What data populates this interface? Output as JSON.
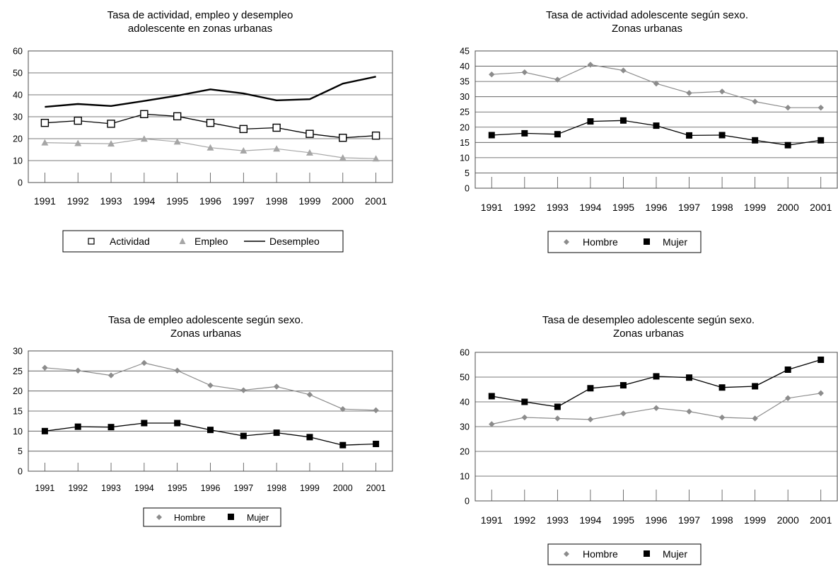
{
  "chart_data": [
    {
      "type": "line",
      "title": "Tasa de actividad, empleo y desempleo",
      "subtitle": "adolescente en zonas urbanas",
      "xlabel": "",
      "ylabel": "",
      "x": [
        "1991",
        "1992",
        "1993",
        "1994",
        "1995",
        "1996",
        "1997",
        "1998",
        "1999",
        "2000",
        "2001"
      ],
      "ylim": [
        0,
        60
      ],
      "yticks": [
        0,
        10,
        20,
        30,
        40,
        50,
        60
      ],
      "grid": true,
      "legend": "bottom",
      "series": [
        {
          "name": "Actividad",
          "color": "#000000",
          "marker": "square-open",
          "values": [
            27.2,
            28.2,
            26.8,
            31.2,
            30.2,
            27.2,
            24.4,
            25.0,
            22.2,
            20.4,
            21.4
          ]
        },
        {
          "name": "Empleo",
          "color": "#a6a6a6",
          "marker": "triangle",
          "values": [
            18.2,
            17.9,
            17.7,
            19.9,
            18.6,
            15.9,
            14.5,
            15.4,
            13.6,
            11.3,
            10.9
          ]
        },
        {
          "name": "Desempleo",
          "color": "#000000",
          "marker": "none",
          "values": [
            34.5,
            35.8,
            34.9,
            37.2,
            39.6,
            42.5,
            40.6,
            37.5,
            38.0,
            45.1,
            48.3
          ]
        }
      ]
    },
    {
      "type": "line",
      "title": "Tasa de actividad adolescente según sexo.",
      "subtitle": "Zonas urbanas",
      "xlabel": "",
      "ylabel": "",
      "x": [
        "1991",
        "1992",
        "1993",
        "1994",
        "1995",
        "1996",
        "1997",
        "1998",
        "1999",
        "2000",
        "2001"
      ],
      "ylim": [
        0,
        45
      ],
      "yticks": [
        0,
        5,
        10,
        15,
        20,
        25,
        30,
        35,
        40,
        45
      ],
      "grid": true,
      "legend": "bottom",
      "series": [
        {
          "name": "Hombre",
          "color": "#8c8c8c",
          "marker": "diamond",
          "values": [
            37.3,
            38.0,
            35.6,
            40.5,
            38.6,
            34.3,
            31.2,
            31.7,
            28.4,
            26.4,
            26.4
          ]
        },
        {
          "name": "Mujer",
          "color": "#000000",
          "marker": "square",
          "values": [
            17.4,
            18.0,
            17.7,
            21.9,
            22.2,
            20.5,
            17.3,
            17.4,
            15.7,
            14.1,
            15.7
          ]
        }
      ]
    },
    {
      "type": "line",
      "title": "Tasa de empleo adolescente según sexo.",
      "subtitle": "Zonas urbanas",
      "xlabel": "",
      "ylabel": "",
      "x": [
        "1991",
        "1992",
        "1993",
        "1994",
        "1995",
        "1996",
        "1997",
        "1998",
        "1999",
        "2000",
        "2001"
      ],
      "ylim": [
        0,
        30
      ],
      "yticks": [
        0,
        5,
        10,
        15,
        20,
        25,
        30
      ],
      "grid": true,
      "legend": "bottom",
      "series": [
        {
          "name": "Hombre",
          "color": "#8c8c8c",
          "marker": "diamond",
          "values": [
            25.8,
            25.1,
            23.9,
            27.0,
            25.1,
            21.4,
            20.2,
            21.1,
            19.1,
            15.5,
            15.2
          ]
        },
        {
          "name": "Mujer",
          "color": "#000000",
          "marker": "square",
          "values": [
            10.0,
            11.1,
            11.0,
            12.0,
            12.0,
            10.3,
            8.8,
            9.6,
            8.5,
            6.5,
            6.8
          ]
        }
      ]
    },
    {
      "type": "line",
      "title": "Tasa de desempleo adolescente según sexo.",
      "subtitle": "Zonas urbanas",
      "xlabel": "",
      "ylabel": "",
      "x": [
        "1991",
        "1992",
        "1993",
        "1994",
        "1995",
        "1996",
        "1997",
        "1998",
        "1999",
        "2000",
        "2001"
      ],
      "ylim": [
        0,
        60
      ],
      "yticks": [
        0,
        10,
        20,
        30,
        40,
        50,
        60
      ],
      "grid": true,
      "legend": "bottom",
      "series": [
        {
          "name": "Hombre",
          "color": "#8c8c8c",
          "marker": "diamond",
          "values": [
            31.0,
            33.7,
            33.3,
            32.9,
            35.3,
            37.5,
            36.1,
            33.7,
            33.3,
            41.5,
            43.5
          ]
        },
        {
          "name": "Mujer",
          "color": "#000000",
          "marker": "square",
          "values": [
            42.3,
            40.0,
            38.0,
            45.5,
            46.7,
            50.3,
            49.8,
            45.8,
            46.3,
            53.0,
            57.0
          ]
        }
      ]
    }
  ]
}
